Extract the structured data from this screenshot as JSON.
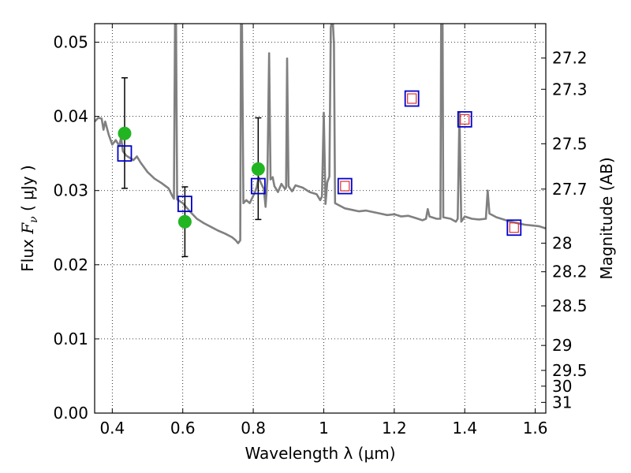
{
  "chart_data": {
    "type": "scatter",
    "xlabel": "Wavelength  λ (μm)",
    "ylabel": "Flux  Fν  ( μJy )",
    "ylabel_parts": {
      "pre": "Flux  ",
      "italic": "F",
      "sub": "ν",
      "post": "  ( μJy )"
    },
    "y2label": "Magnitude (AB)",
    "xlim": [
      0.35,
      1.63
    ],
    "ylim": [
      0.0,
      0.0525
    ],
    "grid": true,
    "x_ticks": [
      0.4,
      0.6,
      0.8,
      1.0,
      1.2,
      1.4,
      1.6
    ],
    "x_tick_labels": [
      "0.4",
      "0.6",
      "0.8",
      "1",
      "1.2",
      "1.4",
      "1.6"
    ],
    "y_ticks": [
      0.0,
      0.01,
      0.02,
      0.03,
      0.04,
      0.05
    ],
    "y_tick_labels": [
      "0.00",
      "0.01",
      "0.02",
      "0.03",
      "0.04",
      "0.05"
    ],
    "mag_ticks": [
      {
        "label": "27.2",
        "value": 27.2
      },
      {
        "label": "27.3",
        "value": 27.3
      },
      {
        "label": "27.5",
        "value": 27.5
      },
      {
        "label": "27.7",
        "value": 27.7
      },
      {
        "label": "28",
        "value": 28.0
      },
      {
        "label": "28.2",
        "value": 28.2
      },
      {
        "label": "28.5",
        "value": 28.5
      },
      {
        "label": "29",
        "value": 29.0
      },
      {
        "label": "29.5",
        "value": 29.5
      },
      {
        "label": "30",
        "value": 30.0
      },
      {
        "label": "31",
        "value": 31.0
      }
    ],
    "series": [
      {
        "kind": "sed_model_line",
        "color": "#808080",
        "points": [
          [
            0.35,
            0.0393
          ],
          [
            0.36,
            0.0398
          ],
          [
            0.37,
            0.0397
          ],
          [
            0.375,
            0.0382
          ],
          [
            0.38,
            0.0393
          ],
          [
            0.39,
            0.0375
          ],
          [
            0.4,
            0.0362
          ],
          [
            0.41,
            0.0368
          ],
          [
            0.42,
            0.036
          ],
          [
            0.425,
            0.0372
          ],
          [
            0.43,
            0.0353
          ],
          [
            0.44,
            0.0347
          ],
          [
            0.46,
            0.0341
          ],
          [
            0.47,
            0.0346
          ],
          [
            0.48,
            0.0338
          ],
          [
            0.5,
            0.0325
          ],
          [
            0.52,
            0.0316
          ],
          [
            0.54,
            0.031
          ],
          [
            0.56,
            0.0303
          ],
          [
            0.57,
            0.0293
          ],
          [
            0.575,
            0.0289
          ],
          [
            0.578,
            0.0525
          ],
          [
            0.581,
            0.0525
          ],
          [
            0.584,
            0.0288
          ],
          [
            0.6,
            0.0283
          ],
          [
            0.62,
            0.0272
          ],
          [
            0.64,
            0.0262
          ],
          [
            0.66,
            0.0256
          ],
          [
            0.68,
            0.0251
          ],
          [
            0.7,
            0.0246
          ],
          [
            0.72,
            0.0242
          ],
          [
            0.74,
            0.0237
          ],
          [
            0.75,
            0.0233
          ],
          [
            0.757,
            0.0229
          ],
          [
            0.763,
            0.0233
          ],
          [
            0.765,
            0.0525
          ],
          [
            0.768,
            0.0525
          ],
          [
            0.772,
            0.0283
          ],
          [
            0.78,
            0.0287
          ],
          [
            0.79,
            0.0283
          ],
          [
            0.8,
            0.0293
          ],
          [
            0.805,
            0.0298
          ],
          [
            0.81,
            0.0305
          ],
          [
            0.815,
            0.0318
          ],
          [
            0.822,
            0.031
          ],
          [
            0.83,
            0.0302
          ],
          [
            0.835,
            0.0278
          ],
          [
            0.84,
            0.0315
          ],
          [
            0.845,
            0.0485
          ],
          [
            0.849,
            0.0315
          ],
          [
            0.855,
            0.0318
          ],
          [
            0.86,
            0.0306
          ],
          [
            0.87,
            0.0298
          ],
          [
            0.88,
            0.0309
          ],
          [
            0.89,
            0.0302
          ],
          [
            0.893,
            0.0304
          ],
          [
            0.896,
            0.0478
          ],
          [
            0.9,
            0.0306
          ],
          [
            0.91,
            0.0299
          ],
          [
            0.92,
            0.0307
          ],
          [
            0.94,
            0.0304
          ],
          [
            0.96,
            0.0298
          ],
          [
            0.98,
            0.0295
          ],
          [
            0.99,
            0.0287
          ],
          [
            0.995,
            0.0292
          ],
          [
            1.0,
            0.0405
          ],
          [
            1.005,
            0.0282
          ],
          [
            1.01,
            0.0311
          ],
          [
            1.016,
            0.0319
          ],
          [
            1.02,
            0.052
          ],
          [
            1.022,
            0.0525
          ],
          [
            1.026,
            0.0525
          ],
          [
            1.029,
            0.0498
          ],
          [
            1.032,
            0.0283
          ],
          [
            1.04,
            0.0281
          ],
          [
            1.06,
            0.0276
          ],
          [
            1.08,
            0.0274
          ],
          [
            1.1,
            0.0272
          ],
          [
            1.12,
            0.0273
          ],
          [
            1.14,
            0.0271
          ],
          [
            1.16,
            0.0269
          ],
          [
            1.18,
            0.0267
          ],
          [
            1.2,
            0.0268
          ],
          [
            1.22,
            0.0265
          ],
          [
            1.24,
            0.0266
          ],
          [
            1.26,
            0.0263
          ],
          [
            1.28,
            0.026
          ],
          [
            1.29,
            0.0262
          ],
          [
            1.295,
            0.0275
          ],
          [
            1.3,
            0.0265
          ],
          [
            1.32,
            0.0262
          ],
          [
            1.331,
            0.0262
          ],
          [
            1.333,
            0.0525
          ],
          [
            1.337,
            0.0525
          ],
          [
            1.339,
            0.0264
          ],
          [
            1.36,
            0.0262
          ],
          [
            1.375,
            0.0258
          ],
          [
            1.38,
            0.0262
          ],
          [
            1.385,
            0.0405
          ],
          [
            1.39,
            0.0258
          ],
          [
            1.4,
            0.0265
          ],
          [
            1.42,
            0.0262
          ],
          [
            1.44,
            0.0261
          ],
          [
            1.46,
            0.0262
          ],
          [
            1.465,
            0.03
          ],
          [
            1.47,
            0.0269
          ],
          [
            1.49,
            0.0264
          ],
          [
            1.51,
            0.0261
          ],
          [
            1.53,
            0.0258
          ],
          [
            1.55,
            0.0256
          ],
          [
            1.57,
            0.0254
          ],
          [
            1.59,
            0.0253
          ],
          [
            1.61,
            0.0252
          ],
          [
            1.63,
            0.0249
          ]
        ]
      },
      {
        "kind": "observed_points",
        "color": "#22b522",
        "points": [
          {
            "x": 0.435,
            "y": 0.0377,
            "yerr_low": 0.0303,
            "yerr_high": 0.0452
          },
          {
            "x": 0.606,
            "y": 0.0258,
            "yerr_low": 0.0211,
            "yerr_high": 0.0305
          },
          {
            "x": 0.814,
            "y": 0.0329,
            "yerr_low": 0.0261,
            "yerr_high": 0.0398
          }
        ]
      },
      {
        "kind": "model_band_flux",
        "marker": "square",
        "edge_color": "#0000cc",
        "points": [
          {
            "x": 0.435,
            "y": 0.035
          },
          {
            "x": 0.606,
            "y": 0.0282
          },
          {
            "x": 0.814,
            "y": 0.0306
          },
          {
            "x": 1.06,
            "y": 0.0306
          },
          {
            "x": 1.25,
            "y": 0.0424
          },
          {
            "x": 1.4,
            "y": 0.0396
          },
          {
            "x": 1.54,
            "y": 0.025
          }
        ]
      },
      {
        "kind": "predicted_band_flux",
        "marker": "square",
        "edge_color": "#e03030",
        "points": [
          {
            "x": 1.06,
            "y": 0.0306
          },
          {
            "x": 1.25,
            "y": 0.0424
          },
          {
            "x": 1.4,
            "y": 0.0396
          },
          {
            "x": 1.54,
            "y": 0.025
          }
        ]
      }
    ]
  }
}
